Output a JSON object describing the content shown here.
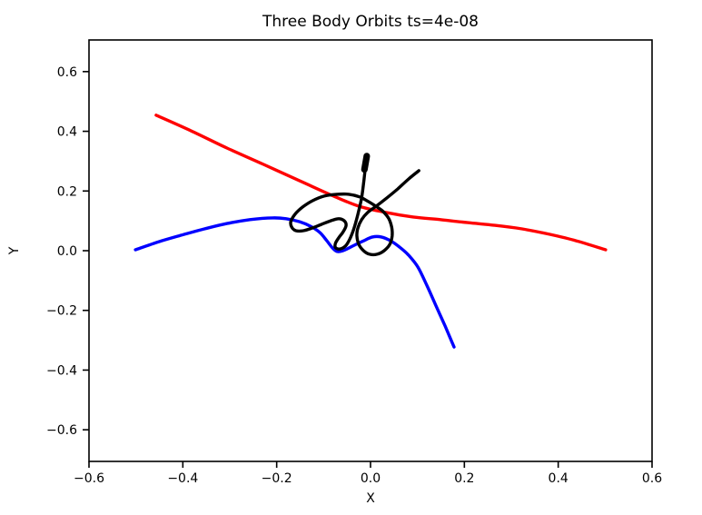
{
  "chart_data": {
    "type": "line",
    "title": "Three Body Orbits ts=4e-08",
    "xlabel": "X",
    "ylabel": "Y",
    "xlim": [
      -0.6,
      0.6
    ],
    "ylim": [
      -0.706,
      0.706
    ],
    "grid": false,
    "legend": "none",
    "background": "#ffffff",
    "axis_color": "#000000",
    "xticks": [
      {
        "value": -0.6,
        "label": "−0.6"
      },
      {
        "value": -0.4,
        "label": "−0.4"
      },
      {
        "value": -0.2,
        "label": "−0.2"
      },
      {
        "value": 0.0,
        "label": "0.0"
      },
      {
        "value": 0.2,
        "label": "0.2"
      },
      {
        "value": 0.4,
        "label": "0.4"
      },
      {
        "value": 0.6,
        "label": "0.6"
      }
    ],
    "yticks": [
      {
        "value": 0.6,
        "label": "0.6"
      },
      {
        "value": 0.4,
        "label": "0.4"
      },
      {
        "value": 0.2,
        "label": "0.2"
      },
      {
        "value": 0.0,
        "label": "0.0"
      },
      {
        "value": -0.2,
        "label": "−0.2"
      },
      {
        "value": -0.4,
        "label": "−0.4"
      },
      {
        "value": -0.6,
        "label": "−0.6"
      }
    ],
    "series": [
      {
        "name": "body-red",
        "color": "#ff0000",
        "x": [
          -0.457,
          -0.383,
          -0.306,
          -0.228,
          -0.151,
          -0.083,
          -0.025,
          0.033,
          0.091,
          0.149,
          0.207,
          0.265,
          0.323,
          0.381,
          0.439,
          0.501
        ],
        "y": [
          0.454,
          0.402,
          0.344,
          0.289,
          0.234,
          0.186,
          0.149,
          0.128,
          0.113,
          0.104,
          0.094,
          0.085,
          0.073,
          0.055,
          0.033,
          0.003
        ]
      },
      {
        "name": "body-blue",
        "color": "#0000ff",
        "x": [
          -0.501,
          -0.451,
          -0.403,
          -0.354,
          -0.306,
          -0.257,
          -0.209,
          -0.18,
          -0.151,
          -0.128,
          -0.108,
          -0.093,
          -0.081,
          -0.07,
          -0.054,
          -0.035,
          -0.015,
          0.004,
          0.023,
          0.043,
          0.062,
          0.081,
          0.101,
          0.12,
          0.139,
          0.159,
          0.178
        ],
        "y": [
          0.003,
          0.03,
          0.052,
          0.073,
          0.091,
          0.104,
          0.11,
          0.107,
          0.097,
          0.082,
          0.061,
          0.033,
          0.009,
          -0.003,
          0.003,
          0.018,
          0.033,
          0.046,
          0.046,
          0.033,
          0.012,
          -0.015,
          -0.055,
          -0.116,
          -0.183,
          -0.253,
          -0.323
        ]
      },
      {
        "name": "body-black",
        "color": "#000000",
        "x": [
          0.103,
          0.081,
          0.058,
          0.035,
          0.012,
          -0.006,
          -0.019,
          -0.027,
          -0.029,
          -0.025,
          -0.015,
          -0.002,
          0.014,
          0.029,
          0.041,
          0.046,
          0.045,
          0.039,
          0.027,
          0.014,
          -0.004,
          -0.023,
          -0.046,
          -0.072,
          -0.099,
          -0.124,
          -0.145,
          -0.161,
          -0.17,
          -0.168,
          -0.159,
          -0.143,
          -0.124,
          -0.105,
          -0.085,
          -0.068,
          -0.056,
          -0.052,
          -0.058,
          -0.068,
          -0.075,
          -0.074,
          -0.064,
          -0.052,
          -0.043,
          -0.035,
          -0.027,
          -0.019,
          -0.014,
          -0.01,
          -0.008
        ],
        "y": [
          0.268,
          0.24,
          0.207,
          0.177,
          0.149,
          0.128,
          0.104,
          0.076,
          0.049,
          0.021,
          0.0,
          -0.012,
          -0.012,
          0.0,
          0.021,
          0.049,
          0.079,
          0.107,
          0.131,
          0.146,
          0.164,
          0.18,
          0.189,
          0.189,
          0.183,
          0.167,
          0.146,
          0.122,
          0.097,
          0.079,
          0.067,
          0.067,
          0.076,
          0.088,
          0.1,
          0.107,
          0.1,
          0.085,
          0.064,
          0.043,
          0.024,
          0.009,
          0.006,
          0.018,
          0.043,
          0.076,
          0.122,
          0.177,
          0.237,
          0.292,
          0.317
        ],
        "tip_segment": {
          "x1": -0.013,
          "y1": 0.272,
          "x2": -0.008,
          "y2": 0.317
        }
      }
    ]
  }
}
